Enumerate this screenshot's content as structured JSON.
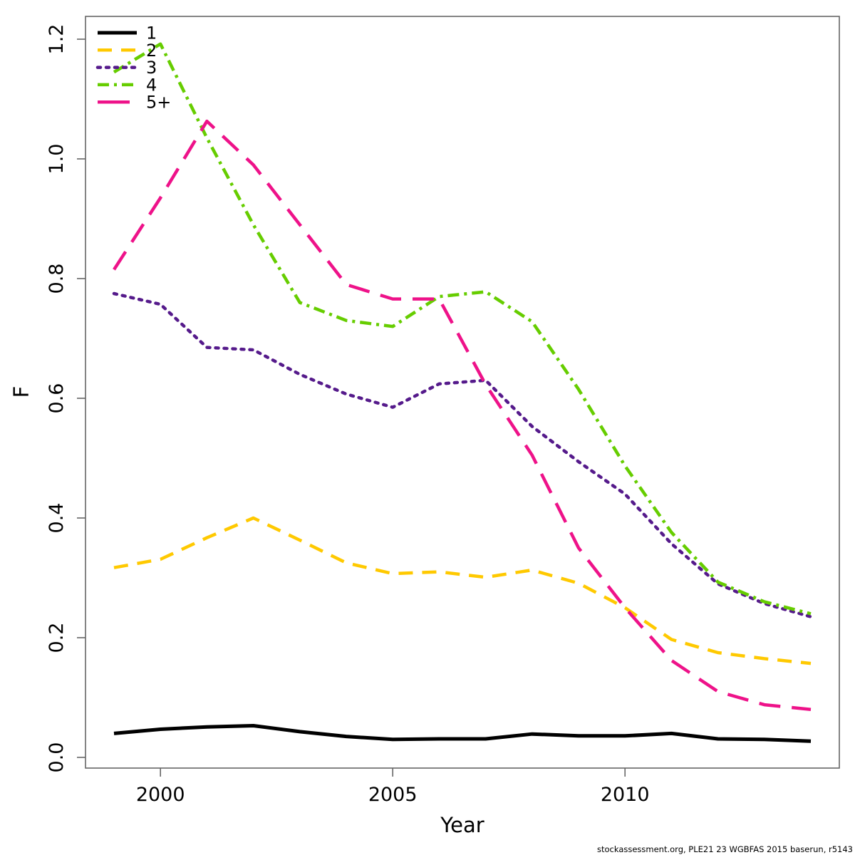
{
  "chart_data": {
    "type": "line",
    "title": "",
    "xlabel": "Year",
    "ylabel": "F",
    "grid": false,
    "legend_position": "top-left",
    "xlim": [
      1999,
      2014
    ],
    "ylim": [
      0.0,
      1.2
    ],
    "xticks": [
      2000,
      2005,
      2010
    ],
    "yticks": [
      0.0,
      0.2,
      0.4,
      0.6,
      0.8,
      1.0,
      1.2
    ],
    "x": [
      1999,
      2000,
      2001,
      2002,
      2003,
      2004,
      2005,
      2006,
      2007,
      2008,
      2009,
      2010,
      2011,
      2012,
      2013,
      2014
    ],
    "series": [
      {
        "name": "1",
        "color": "#000000",
        "dash": "solid",
        "values": [
          0.04,
          0.047,
          0.051,
          0.053,
          0.043,
          0.035,
          0.03,
          0.031,
          0.031,
          0.039,
          0.036,
          0.036,
          0.04,
          0.031,
          0.03,
          0.027
        ]
      },
      {
        "name": "2",
        "color": "#FFC900",
        "dash": "dashed",
        "values": [
          0.317,
          0.331,
          0.367,
          0.4,
          0.363,
          0.325,
          0.307,
          0.31,
          0.301,
          0.313,
          0.291,
          0.25,
          0.197,
          0.175,
          0.165,
          0.157
        ]
      },
      {
        "name": "3",
        "color": "#551A8B",
        "dash": "dotted",
        "values": [
          0.775,
          0.757,
          0.685,
          0.681,
          0.64,
          0.607,
          0.585,
          0.624,
          0.63,
          0.553,
          0.494,
          0.44,
          0.357,
          0.29,
          0.257,
          0.235
        ]
      },
      {
        "name": "4",
        "color": "#66CD00",
        "dash": "dashdot",
        "values": [
          1.145,
          1.192,
          1.035,
          0.89,
          0.76,
          0.73,
          0.72,
          0.77,
          0.778,
          0.728,
          0.615,
          0.487,
          0.376,
          0.293,
          0.26,
          0.24
        ]
      },
      {
        "name": "5+",
        "color": "#EE1289",
        "dash": "longdash",
        "values": [
          0.815,
          0.935,
          1.063,
          0.99,
          0.89,
          0.79,
          0.766,
          0.766,
          0.623,
          0.505,
          0.35,
          0.25,
          0.162,
          0.11,
          0.088,
          0.08
        ]
      }
    ]
  },
  "footer": {
    "text": "stockassessment.org, PLE21 23 WGBFAS 2015 baserun, r5143"
  }
}
